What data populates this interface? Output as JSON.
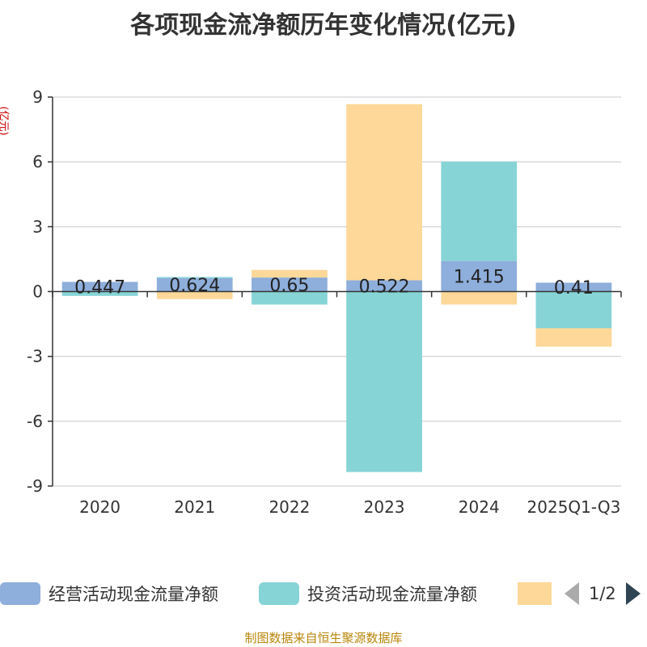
{
  "chart_data": {
    "type": "bar",
    "title": "各项现金流净额历年变化情况(亿元)",
    "ylabel": "(亿元)",
    "xlabel": "",
    "categories": [
      "2020",
      "2021",
      "2022",
      "2023",
      "2024",
      "2025Q1-Q3"
    ],
    "ylim": [
      -9,
      9
    ],
    "yticks": [
      9,
      6,
      3,
      0,
      -3,
      -6,
      -9
    ],
    "grid": true,
    "legend_position": "bottom",
    "stacked": true,
    "series": [
      {
        "name": "经营活动现金流量净额",
        "color": "#8eaedb",
        "values": [
          0.447,
          0.624,
          0.65,
          0.522,
          1.415,
          0.41
        ],
        "show_labels": true
      },
      {
        "name": "投资活动现金流量净额",
        "color": "#86d4d6",
        "values": [
          -0.2,
          0.05,
          -0.6,
          -8.35,
          4.6,
          -1.7
        ],
        "show_labels": false
      },
      {
        "name": "",
        "color": "#fdd898",
        "values": [
          0.0,
          -0.35,
          0.35,
          8.15,
          -0.6,
          -0.85
        ],
        "show_labels": false
      }
    ]
  },
  "legend": {
    "page": "1/2"
  },
  "source_note": "制图数据来自恒生聚源数据库"
}
